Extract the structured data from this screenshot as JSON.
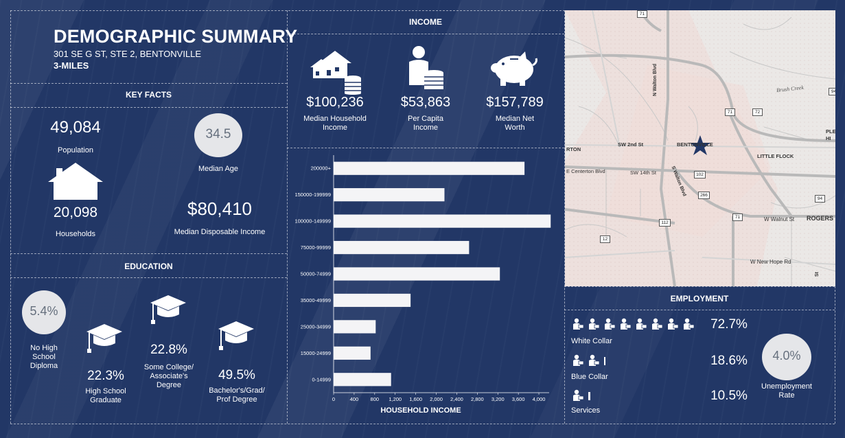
{
  "header": {
    "title": "DEMOGRAPHIC SUMMARY",
    "address": "301 SE G ST, STE 2, BENTONVILLE",
    "radius": "3-MILES"
  },
  "key_facts": {
    "heading": "KEY FACTS",
    "population": {
      "value": "49,084",
      "label": "Population"
    },
    "median_age": {
      "value": "34.5",
      "label": "Median Age"
    },
    "households": {
      "value": "20,098",
      "label": "Households"
    },
    "disposable_income": {
      "value": "$80,410",
      "label": "Median Disposable Income"
    }
  },
  "education": {
    "heading": "EDUCATION",
    "no_hs": {
      "value": "5.4%",
      "label_1": "No High",
      "label_2": "School",
      "label_3": "Diploma"
    },
    "hs": {
      "value": "22.3%",
      "label_1": "High School",
      "label_2": "Graduate"
    },
    "some_college": {
      "value": "22.8%",
      "label_1": "Some College/",
      "label_2": "Associate's",
      "label_3": "Degree"
    },
    "bachelors": {
      "value": "49.5%",
      "label_1": "Bachelor's/Grad/",
      "label_2": "Prof Degree"
    }
  },
  "income": {
    "heading": "INCOME",
    "median_hh": {
      "value": "$100,236",
      "label_1": "Median Household",
      "label_2": "Income"
    },
    "per_capita": {
      "value": "$53,863",
      "label_1": "Per Capita",
      "label_2": "Income"
    },
    "net_worth": {
      "value": "$157,789",
      "label_1": "Median Net",
      "label_2": "Worth"
    }
  },
  "chart_data": {
    "type": "bar",
    "orientation": "horizontal",
    "xlabel": "HOUSEHOLD INCOME",
    "categories": [
      "200000+",
      "150000-199999",
      "100000-149999",
      "75000-99999",
      "50000-74999",
      "35000-49999",
      "25000-34999",
      "15000-24999",
      "0-14999"
    ],
    "values": [
      3720,
      2160,
      4230,
      2640,
      3240,
      1500,
      820,
      720,
      1120
    ],
    "xlim": [
      0,
      4200
    ],
    "xticks": [
      "0",
      "400",
      "800",
      "1,200",
      "1,600",
      "2,000",
      "2,400",
      "2,800",
      "3,200",
      "3,600",
      "4,000"
    ],
    "bar_color": "#f4f4f6"
  },
  "map": {
    "labels": {
      "brush_creek": "Brush Creek",
      "walton_n": "N Walton Blvd",
      "sw2nd": "SW 2nd St",
      "bentonville": "BENTONVILLE",
      "little_flock": "LITTLE FLOCK",
      "rton": "RTON",
      "centerton": "E Centerton Blvd",
      "sw14": "SW 14th St",
      "walton_s": "S Walton Blvd",
      "walnut": "W Walnut St",
      "rogers": "ROGERS",
      "new_hope": "W New Hope Rd",
      "plea": "PLEA",
      "hi": "HI",
      "st": "St"
    },
    "shields": {
      "s71a": "71",
      "s94a": "94",
      "s71b": "71",
      "s72": "72",
      "s102": "102",
      "s266": "266",
      "s94b": "94",
      "s71c": "71",
      "s112": "112",
      "s12": "12"
    }
  },
  "employment": {
    "heading": "EMPLOYMENT",
    "white_collar": {
      "value": "72.7%",
      "label": "White Collar"
    },
    "blue_collar": {
      "value": "18.6%",
      "label": "Blue Collar"
    },
    "services": {
      "value": "10.5%",
      "label": "Services"
    },
    "unemployment": {
      "value": "4.0%",
      "label_1": "Unemployment",
      "label_2": "Rate"
    }
  }
}
